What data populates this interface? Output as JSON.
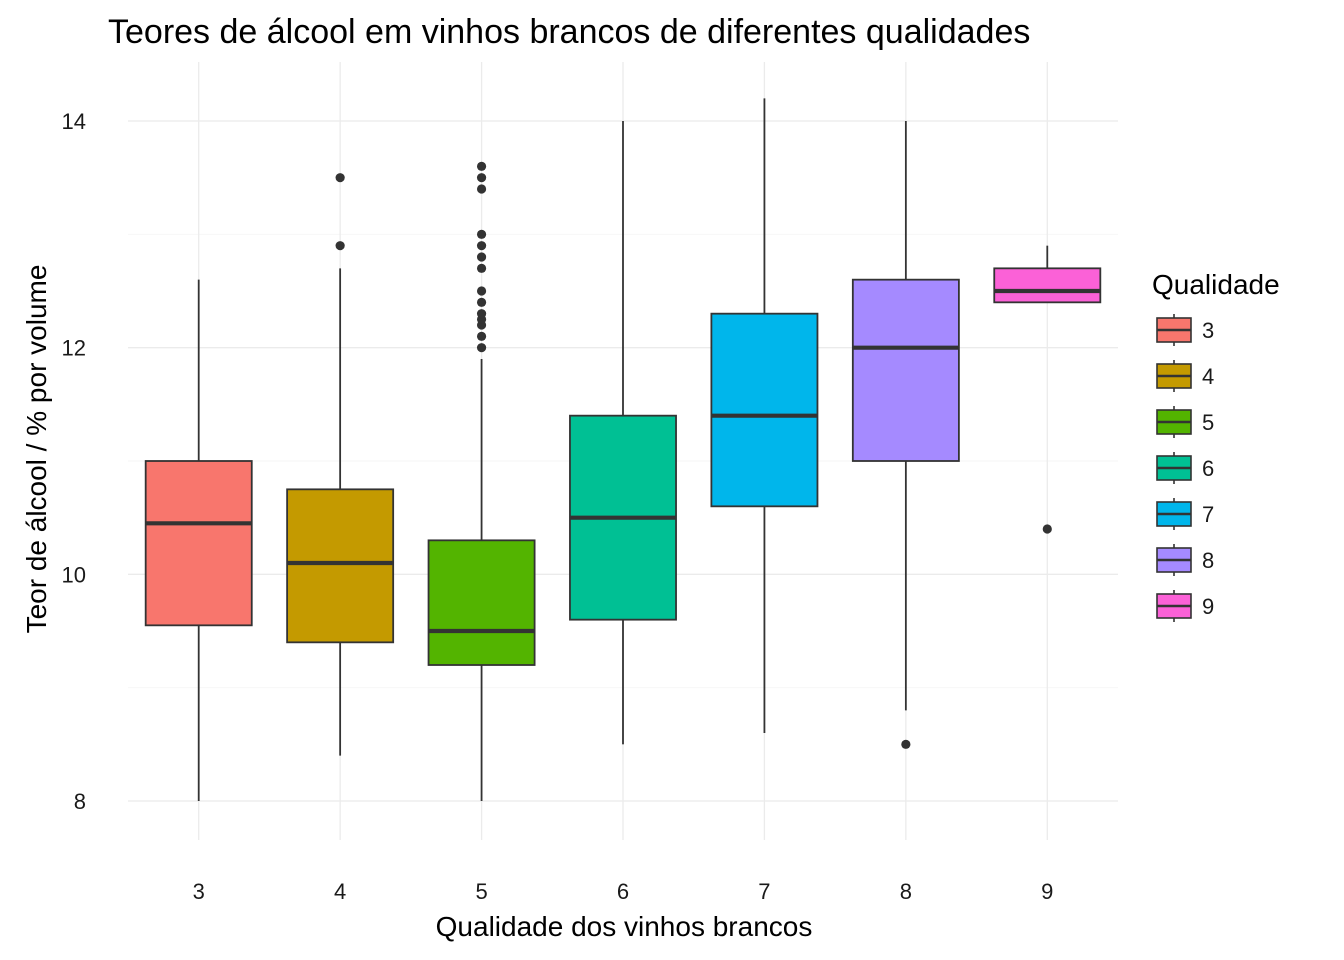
{
  "chart_data": {
    "type": "boxplot",
    "title": "Teores de álcool em vinhos brancos de diferentes qualidades",
    "xlabel": "Qualidade dos vinhos brancos",
    "ylabel": "Teor de álcool / % por volume",
    "ylim": [
      7.6,
      14.6
    ],
    "y_ticks": [
      8,
      10,
      12,
      14
    ],
    "grid": true,
    "legend": {
      "title": "Qualidade",
      "position": "right"
    },
    "categories": [
      "3",
      "4",
      "5",
      "6",
      "7",
      "8",
      "9"
    ],
    "boxes": [
      {
        "category": "3",
        "color": "#F8766D",
        "whisker_low": 8.0,
        "q1": 9.55,
        "median": 10.45,
        "q3": 11.0,
        "whisker_high": 12.6,
        "outliers": []
      },
      {
        "category": "4",
        "color": "#C49A00",
        "whisker_low": 8.4,
        "q1": 9.4,
        "median": 10.1,
        "q3": 10.75,
        "whisker_high": 12.7,
        "outliers": [
          12.9,
          13.5
        ]
      },
      {
        "category": "5",
        "color": "#53B400",
        "whisker_low": 8.0,
        "q1": 9.2,
        "median": 9.5,
        "q3": 10.3,
        "whisker_high": 11.9,
        "outliers": [
          12.0,
          12.1,
          12.2,
          12.25,
          12.3,
          12.4,
          12.5,
          12.7,
          12.8,
          12.9,
          13.0,
          13.4,
          13.5,
          13.6
        ]
      },
      {
        "category": "6",
        "color": "#00C094",
        "whisker_low": 8.5,
        "q1": 9.6,
        "median": 10.5,
        "q3": 11.4,
        "whisker_high": 14.0,
        "outliers": []
      },
      {
        "category": "7",
        "color": "#00B6EB",
        "whisker_low": 8.6,
        "q1": 10.6,
        "median": 11.4,
        "q3": 12.3,
        "whisker_high": 14.2,
        "outliers": []
      },
      {
        "category": "8",
        "color": "#A58AFF",
        "whisker_low": 8.8,
        "q1": 11.0,
        "median": 12.0,
        "q3": 12.6,
        "whisker_high": 14.0,
        "outliers": [
          8.5
        ]
      },
      {
        "category": "9",
        "color": "#FB61D7",
        "whisker_low": 12.4,
        "q1": 12.4,
        "median": 12.5,
        "q3": 12.7,
        "whisker_high": 12.9,
        "outliers": [
          10.4
        ]
      }
    ]
  }
}
